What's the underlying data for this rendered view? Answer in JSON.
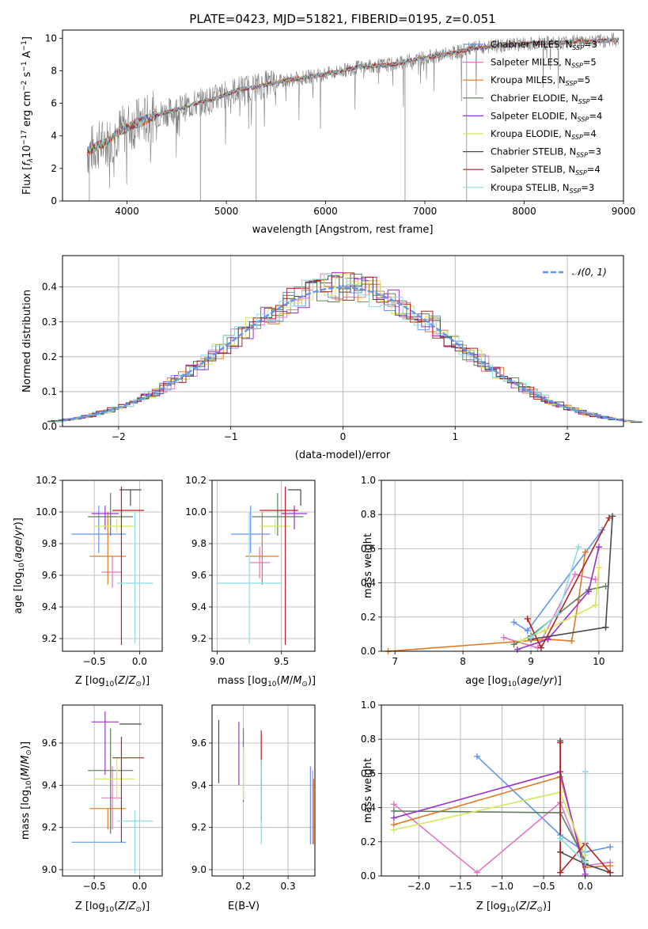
{
  "colors": {
    "spectrum": "#7f7f7f",
    "chabrier_miles": "#6495ED",
    "salpeter_miles": "#E377C2",
    "kroupa_miles": "#E07B24",
    "chabrier_elodie": "#5F7F5F",
    "salpeter_elodie": "#9932CC",
    "kroupa_elodie": "#D4E85A",
    "chabrier_stelib": "#4A4A4A",
    "salpeter_stelib": "#B22222",
    "kroupa_stelib": "#8ADBE6"
  },
  "chart_data": [
    {
      "id": "spectrum",
      "type": "line",
      "title": "PLATE=0423, MJD=51821, FIBERID=0195, z=0.051",
      "xlabel": "wavelength [Angstrom, rest frame]",
      "ylabel": "Flux [f_λ10^-17 erg cm^-2 s^-1 A^-1]",
      "xlim": [
        3350,
        9000
      ],
      "ylim": [
        0,
        10.5
      ],
      "xticks": [
        "4000",
        "5000",
        "6000",
        "7000",
        "8000",
        "9000"
      ],
      "yticks": [
        "0",
        "2",
        "4",
        "6",
        "8",
        "10"
      ],
      "grid": false,
      "legend_position": "right",
      "legend": [
        {
          "name": "Chabrier MILES, N",
          "sub": "SSP",
          "suffix": "=3"
        },
        {
          "name": "Salpeter MILES, N",
          "sub": "SSP",
          "suffix": "=5"
        },
        {
          "name": "Kroupa MILES, N",
          "sub": "SSP",
          "suffix": "=5"
        },
        {
          "name": "Chabrier ELODIE, N",
          "sub": "SSP",
          "suffix": "=4"
        },
        {
          "name": "Salpeter ELODIE, N",
          "sub": "SSP",
          "suffix": "=4"
        },
        {
          "name": "Kroupa ELODIE, N",
          "sub": "SSP",
          "suffix": "=4"
        },
        {
          "name": "Chabrier STELIB, N",
          "sub": "SSP",
          "suffix": "=3"
        },
        {
          "name": "Salpeter STELIB, N",
          "sub": "SSP",
          "suffix": "=4"
        },
        {
          "name": "Kroupa STELIB, N",
          "sub": "SSP",
          "suffix": "=3"
        }
      ],
      "continuum": {
        "x": [
          3600,
          3700,
          3800,
          3900,
          4000,
          4100,
          4200,
          4300,
          4500,
          4700,
          4900,
          5100,
          5300,
          5500,
          5700,
          5900,
          6100,
          6300,
          6500,
          6700,
          6900,
          7100,
          7300,
          7500,
          7700,
          7900,
          8100,
          8300,
          8500,
          8700,
          8900
        ],
        "y": [
          3.0,
          3.4,
          3.6,
          4.2,
          4.5,
          4.8,
          5.0,
          5.3,
          5.6,
          6.0,
          6.3,
          6.8,
          7.0,
          7.3,
          7.5,
          7.7,
          7.9,
          8.2,
          8.3,
          8.4,
          8.7,
          8.9,
          9.1,
          9.4,
          9.5,
          9.6,
          9.7,
          9.7,
          9.8,
          9.8,
          9.9
        ]
      },
      "absorption_dips": [
        {
          "x": 3620,
          "y": 0
        },
        {
          "x": 4740,
          "y": 0
        },
        {
          "x": 5300,
          "y": 0
        },
        {
          "x": 6800,
          "y": 0
        },
        {
          "x": 7420,
          "y": 0
        }
      ]
    },
    {
      "id": "residuals",
      "type": "area",
      "xlabel": "(data-model)/error",
      "ylabel": "Normed distribution",
      "xlim": [
        -2.5,
        2.5
      ],
      "ylim": [
        0,
        0.49
      ],
      "xticks": [
        "−2",
        "−1",
        "0",
        "1",
        "2"
      ],
      "yticks": [
        "0.0",
        "0.1",
        "0.2",
        "0.3",
        "0.4"
      ],
      "grid": true,
      "legend_position": "top-right",
      "legend": "𝒩(0, 1)",
      "bin_width": 0.1
    },
    {
      "id": "age_vs_Z",
      "type": "scatter",
      "xlabel": "Z [log10(Z/Z⊙)]",
      "ylabel": "age [log10(age/yr)]",
      "xlim": [
        -0.85,
        0.25
      ],
      "ylim": [
        9.12,
        10.2
      ],
      "xticks": [
        "−0.5",
        "0.0"
      ],
      "yticks": [
        "9.2",
        "9.4",
        "9.6",
        "9.8",
        "10.0",
        "10.2"
      ],
      "grid": true,
      "errorbars": [
        {
          "series": "chabrier_miles",
          "x": -0.45,
          "y": 9.86,
          "xerr": [
            0.3,
            0.3
          ],
          "yerr": [
            0.12,
            0.18
          ]
        },
        {
          "series": "salpeter_miles",
          "x": -0.3,
          "y": 9.62,
          "xerr": [
            0.12,
            0.1
          ],
          "yerr": [
            0.1,
            0.1
          ]
        },
        {
          "series": "kroupa_miles",
          "x": -0.35,
          "y": 9.72,
          "xerr": [
            0.2,
            0.2
          ],
          "yerr": [
            0.18,
            0.28
          ]
        },
        {
          "series": "chabrier_elodie",
          "x": -0.32,
          "y": 9.97,
          "xerr": [
            0.25,
            0.25
          ],
          "yerr": [
            0.12,
            0.15
          ]
        },
        {
          "series": "salpeter_elodie",
          "x": -0.38,
          "y": 9.99,
          "xerr": [
            0.15,
            0.15
          ],
          "yerr": [
            0.1,
            0.05
          ]
        },
        {
          "series": "kroupa_elodie",
          "x": -0.25,
          "y": 9.91,
          "xerr": [
            0.25,
            0.2
          ],
          "yerr": [
            0.05,
            0.05
          ]
        },
        {
          "series": "chabrier_stelib",
          "x": -0.1,
          "y": 10.14,
          "xerr": [
            0.12,
            0.12
          ],
          "yerr": [
            0.1,
            0.0
          ]
        },
        {
          "series": "salpeter_stelib",
          "x": -0.2,
          "y": 10.01,
          "xerr": [
            0.1,
            0.25
          ],
          "yerr": [
            0.85,
            0.15
          ]
        },
        {
          "series": "kroupa_stelib",
          "x": -0.05,
          "y": 9.55,
          "xerr": [
            0.2,
            0.2
          ],
          "yerr": [
            0.38,
            0.45
          ]
        }
      ]
    },
    {
      "id": "age_vs_mass",
      "type": "scatter",
      "xlabel": "mass [log10(M/M⊙)]",
      "xlim": [
        8.96,
        9.76
      ],
      "ylim": [
        9.12,
        10.2
      ],
      "xticks": [
        "9.0",
        "9.5"
      ],
      "yticks": [
        "9.2",
        "9.4",
        "9.6",
        "9.8",
        "10.0",
        "10.2"
      ],
      "grid": true,
      "errorbars": [
        {
          "series": "chabrier_miles",
          "x": 9.26,
          "y": 9.86,
          "xerr": [
            0.15,
            0.15
          ],
          "yerr": [
            0.12,
            0.18
          ]
        },
        {
          "series": "salpeter_miles",
          "x": 9.33,
          "y": 9.68,
          "xerr": [
            0.08,
            0.08
          ],
          "yerr": [
            0.1,
            0.1
          ]
        },
        {
          "series": "kroupa_miles",
          "x": 9.35,
          "y": 9.72,
          "xerr": [
            0.13,
            0.13
          ],
          "yerr": [
            0.18,
            0.28
          ]
        },
        {
          "series": "chabrier_elodie",
          "x": 9.47,
          "y": 9.97,
          "xerr": [
            0.2,
            0.2
          ],
          "yerr": [
            0.12,
            0.15
          ]
        },
        {
          "series": "salpeter_elodie",
          "x": 9.6,
          "y": 9.99,
          "xerr": [
            0.1,
            0.1
          ],
          "yerr": [
            0.1,
            0.05
          ]
        },
        {
          "series": "kroupa_elodie",
          "x": 9.45,
          "y": 9.91,
          "xerr": [
            0.12,
            0.12
          ],
          "yerr": [
            0.05,
            0.05
          ]
        },
        {
          "series": "chabrier_stelib",
          "x": 9.65,
          "y": 10.14,
          "xerr": [
            0.1,
            0.0
          ],
          "yerr": [
            0.1,
            0.0
          ]
        },
        {
          "series": "salpeter_stelib",
          "x": 9.53,
          "y": 10.01,
          "xerr": [
            0.2,
            0.1
          ],
          "yerr": [
            0.85,
            0.15
          ]
        },
        {
          "series": "kroupa_stelib",
          "x": 9.25,
          "y": 9.55,
          "xerr": [
            0.25,
            0.25
          ],
          "yerr": [
            0.38,
            0.45
          ]
        }
      ]
    },
    {
      "id": "weight_vs_age",
      "type": "line",
      "xlabel": "age [log10(age/yr)]",
      "ylabel": "mass weight",
      "xlim": [
        6.8,
        10.35
      ],
      "ylim": [
        0,
        1.0
      ],
      "xticks": [
        "7",
        "8",
        "9",
        "10"
      ],
      "yticks": [
        "0.0",
        "0.2",
        "0.4",
        "0.6",
        "0.8",
        "1.0"
      ],
      "grid": true,
      "series": [
        {
          "name": "chabrier_miles",
          "x": [
            8.75,
            8.95,
            10.05
          ],
          "y": [
            0.17,
            0.12,
            0.71
          ]
        },
        {
          "name": "salpeter_miles",
          "x": [
            8.6,
            9.1,
            9.65,
            9.95
          ],
          "y": [
            0.08,
            0.02,
            0.45,
            0.42
          ]
        },
        {
          "name": "kroupa_miles",
          "x": [
            6.9,
            9.25,
            9.6,
            9.7,
            9.8
          ],
          "y": [
            0.0,
            0.07,
            0.06,
            0.3,
            0.58
          ]
        },
        {
          "name": "chabrier_elodie",
          "x": [
            8.75,
            9.0,
            9.85,
            10.1
          ],
          "y": [
            0.04,
            0.09,
            0.36,
            0.38
          ]
        },
        {
          "name": "salpeter_elodie",
          "x": [
            8.8,
            9.25,
            9.85,
            10.0
          ],
          "y": [
            0.01,
            0.07,
            0.35,
            0.61
          ]
        },
        {
          "name": "kroupa_elodie",
          "x": [
            8.85,
            9.2,
            9.95,
            10.0
          ],
          "y": [
            0.06,
            0.12,
            0.27,
            0.49
          ]
        },
        {
          "name": "chabrier_stelib",
          "x": [
            9.0,
            10.1,
            10.2
          ],
          "y": [
            0.07,
            0.14,
            0.79
          ]
        },
        {
          "name": "salpeter_stelib",
          "x": [
            8.95,
            9.15,
            10.15
          ],
          "y": [
            0.19,
            0.02,
            0.78
          ]
        },
        {
          "name": "kroupa_stelib",
          "x": [
            9.0,
            9.4,
            9.7
          ],
          "y": [
            0.08,
            0.22,
            0.61
          ]
        }
      ]
    },
    {
      "id": "mass_vs_Z",
      "type": "scatter",
      "xlabel": "Z [log10(Z/Z⊙)]",
      "ylabel": "mass [log10(M/M⊙)]",
      "xlim": [
        -0.85,
        0.25
      ],
      "ylim": [
        8.97,
        9.78
      ],
      "xticks": [
        "−0.5",
        "0.0"
      ],
      "yticks": [
        "9.0",
        "9.2",
        "9.4",
        "9.6"
      ],
      "grid": true,
      "errorbars": [
        {
          "series": "chabrier_miles",
          "x": -0.45,
          "y": 9.13,
          "xerr": [
            0.3,
            0.3
          ],
          "yerr": [
            0.0,
            0.0
          ]
        },
        {
          "series": "salpeter_miles",
          "x": -0.3,
          "y": 9.34,
          "xerr": [
            0.12,
            0.1
          ],
          "yerr": [
            0.15,
            0.15
          ]
        },
        {
          "series": "kroupa_miles",
          "x": -0.35,
          "y": 9.29,
          "xerr": [
            0.2,
            0.2
          ],
          "yerr": [
            0.1,
            0.0
          ]
        },
        {
          "series": "chabrier_elodie",
          "x": -0.32,
          "y": 9.47,
          "xerr": [
            0.25,
            0.25
          ],
          "yerr": [
            0.3,
            0.2
          ]
        },
        {
          "series": "salpeter_elodie",
          "x": -0.38,
          "y": 9.7,
          "xerr": [
            0.15,
            0.15
          ],
          "yerr": [
            0.25,
            0.05
          ]
        },
        {
          "series": "kroupa_elodie",
          "x": -0.25,
          "y": 9.43,
          "xerr": [
            0.25,
            0.2
          ],
          "yerr": [
            0.1,
            0.1
          ]
        },
        {
          "series": "chabrier_stelib",
          "x": -0.1,
          "y": 9.69,
          "xerr": [
            0.12,
            0.12
          ],
          "yerr": [
            0.0,
            0.0
          ]
        },
        {
          "series": "salpeter_stelib",
          "x": -0.2,
          "y": 9.53,
          "xerr": [
            0.1,
            0.25
          ],
          "yerr": [
            0.4,
            0.1
          ]
        },
        {
          "series": "kroupa_stelib",
          "x": -0.05,
          "y": 9.23,
          "xerr": [
            0.2,
            0.2
          ],
          "yerr": [
            0.25,
            0.05
          ]
        }
      ]
    },
    {
      "id": "mass_vs_ebv",
      "type": "scatter",
      "xlabel": "E(B-V)",
      "xlim": [
        0.13,
        0.36
      ],
      "ylim": [
        8.97,
        9.78
      ],
      "xticks": [
        "0.2",
        "0.3"
      ],
      "yticks": [
        "9.0",
        "9.2",
        "9.4",
        "9.6"
      ],
      "grid": true,
      "errorbars": [
        {
          "series": "chabrier_stelib",
          "x": 0.145,
          "y": 9.56,
          "xerr": [
            0,
            0
          ],
          "yerr": [
            0.15,
            0.15
          ]
        },
        {
          "series": "salpeter_elodie",
          "x": 0.19,
          "y": 9.55,
          "xerr": [
            0,
            0
          ],
          "yerr": [
            0.15,
            0.15
          ]
        },
        {
          "series": "chabrier_elodie",
          "x": 0.2,
          "y": 9.47,
          "xerr": [
            0,
            0
          ],
          "yerr": [
            0.15,
            0.2
          ]
        },
        {
          "series": "kroupa_elodie",
          "x": 0.2,
          "y": 9.43,
          "xerr": [
            0,
            0
          ],
          "yerr": [
            0.1,
            0.15
          ]
        },
        {
          "series": "salpeter_stelib",
          "x": 0.24,
          "y": 9.53,
          "xerr": [
            0,
            0
          ],
          "yerr": [
            0.3,
            0.13
          ]
        },
        {
          "series": "kroupa_stelib",
          "x": 0.24,
          "y": 9.32,
          "xerr": [
            0,
            0
          ],
          "yerr": [
            0.2,
            0.2
          ]
        },
        {
          "series": "chabrier_miles",
          "x": 0.35,
          "y": 9.3,
          "xerr": [
            0,
            0
          ],
          "yerr": [
            0.18,
            0.19
          ]
        },
        {
          "series": "salpeter_miles",
          "x": 0.355,
          "y": 9.28,
          "xerr": [
            0,
            0
          ],
          "yerr": [
            0.16,
            0.19
          ]
        },
        {
          "series": "kroupa_miles",
          "x": 0.357,
          "y": 9.26,
          "xerr": [
            0,
            0
          ],
          "yerr": [
            0.14,
            0.17
          ]
        }
      ]
    },
    {
      "id": "weight_vs_Z",
      "type": "line",
      "xlabel": "Z [log10(Z/Z⊙)]",
      "ylabel": "mass weight",
      "xlim": [
        -2.45,
        0.45
      ],
      "ylim": [
        0,
        1.0
      ],
      "xticks": [
        "−2.0",
        "−1.5",
        "−1.0",
        "−0.5",
        "0.0"
      ],
      "yticks": [
        "0.0",
        "0.2",
        "0.4",
        "0.6",
        "0.8",
        "1.0"
      ],
      "grid": true,
      "series": [
        {
          "name": "chabrier_miles",
          "x": [
            -1.3,
            -0.3,
            0.0,
            0.3
          ],
          "y": [
            0.7,
            0.24,
            0.14,
            0.17
          ]
        },
        {
          "name": "salpeter_miles",
          "x": [
            -2.3,
            -1.3,
            -0.3,
            0.0,
            0.3
          ],
          "y": [
            0.42,
            0.02,
            0.43,
            0.06,
            0.08
          ]
        },
        {
          "name": "kroupa_miles",
          "x": [
            -2.3,
            -0.3,
            0.0,
            0.3
          ],
          "y": [
            0.3,
            0.58,
            0.05,
            0.06
          ]
        },
        {
          "name": "chabrier_elodie",
          "x": [
            -2.3,
            -0.3,
            0.0
          ],
          "y": [
            0.38,
            0.37,
            0.09
          ]
        },
        {
          "name": "salpeter_elodie",
          "x": [
            -2.3,
            -0.3,
            0.0
          ],
          "y": [
            0.34,
            0.61,
            0.01
          ]
        },
        {
          "name": "kroupa_elodie",
          "x": [
            -2.3,
            -0.3,
            0.0
          ],
          "y": [
            0.27,
            0.49,
            0.12
          ]
        },
        {
          "name": "chabrier_stelib",
          "x": [
            -0.3,
            -0.3,
            0.0,
            0.3
          ],
          "y": [
            0.79,
            0.14,
            0.07,
            0.02
          ]
        },
        {
          "name": "salpeter_stelib",
          "x": [
            -0.3,
            -0.3,
            0.0,
            0.3
          ],
          "y": [
            0.78,
            0.02,
            0.19,
            0.02
          ]
        },
        {
          "name": "kroupa_stelib",
          "x": [
            -0.3,
            0.0,
            0.0
          ],
          "y": [
            0.22,
            0.08,
            0.61
          ]
        }
      ]
    }
  ]
}
